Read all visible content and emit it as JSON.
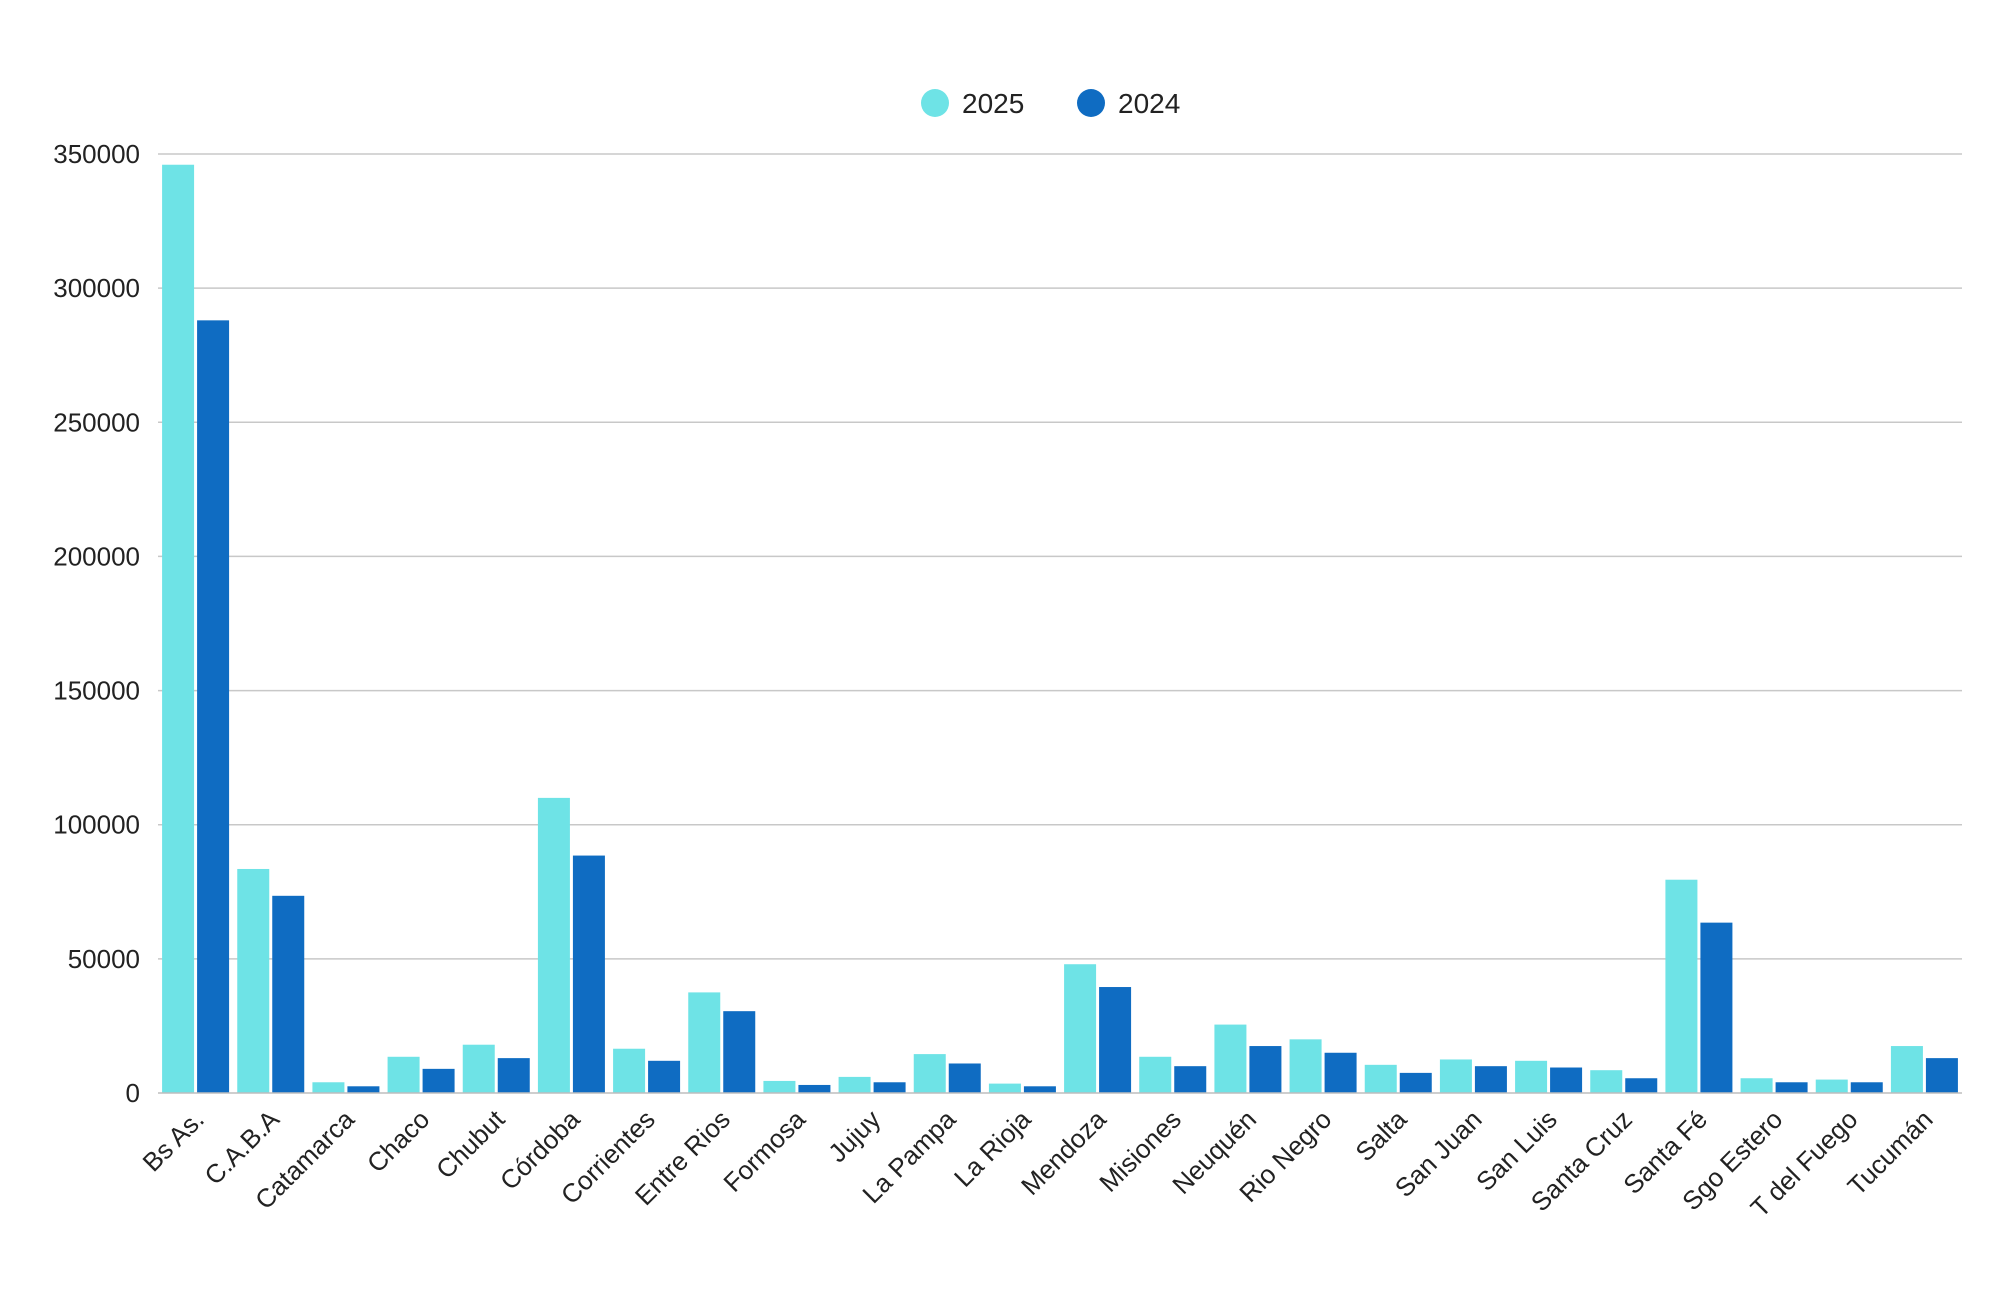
{
  "chart_data": {
    "type": "bar",
    "categories": [
      "Bs As.",
      "C.A.B.A",
      "Catamarca",
      "Chaco",
      "Chubut",
      "Córdoba",
      "Corrientes",
      "Entre Rios",
      "Formosa",
      "Jujuy",
      "La Pampa",
      "La Rioja",
      "Mendoza",
      "Misiones",
      "Neuquén",
      "Rio Negro",
      "Salta",
      "San Juan",
      "San Luis",
      "Santa Cruz",
      "Santa Fé",
      "Sgo Estero",
      "T del Fuego",
      "Tucumán"
    ],
    "series": [
      {
        "name": "2025",
        "color": "#6ee3e6",
        "values": [
          346000,
          83500,
          4000,
          13500,
          18000,
          110000,
          16500,
          37500,
          4500,
          6000,
          14500,
          3500,
          48000,
          13500,
          25500,
          20000,
          10500,
          12500,
          12000,
          8500,
          79500,
          5500,
          5000,
          17500
        ]
      },
      {
        "name": "2024",
        "color": "#0f6cc2",
        "values": [
          288000,
          73500,
          2500,
          9000,
          13000,
          88500,
          12000,
          30500,
          3000,
          4000,
          11000,
          2500,
          39500,
          10000,
          17500,
          15000,
          7500,
          10000,
          9500,
          5500,
          63500,
          4000,
          4000,
          13000
        ]
      }
    ],
    "yticks": [
      "0",
      "50000",
      "100000",
      "150000",
      "200000",
      "250000",
      "300000",
      "350000"
    ],
    "ylim": [
      0,
      350000
    ],
    "title": "",
    "xlabel": "",
    "ylabel": "",
    "grid": true,
    "legend_position": "top-center"
  }
}
